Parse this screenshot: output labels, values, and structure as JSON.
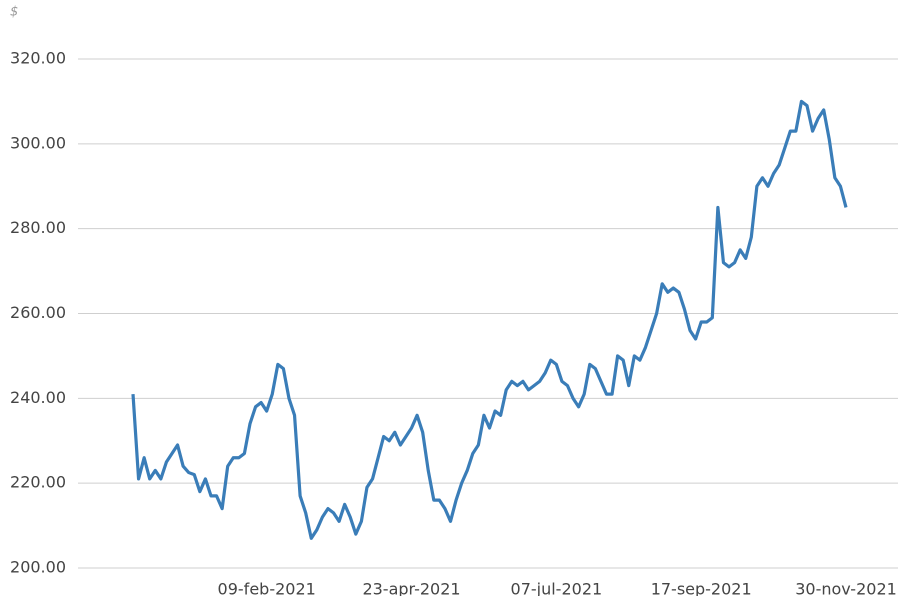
{
  "chart_data": {
    "type": "line",
    "y_label": "$",
    "categories": [
      null,
      null,
      null,
      null,
      null,
      null,
      null,
      null,
      null,
      null,
      null,
      null,
      null,
      null,
      null,
      null,
      null,
      null,
      null,
      null,
      null,
      null,
      null,
      null,
      "09-feb-2021",
      null,
      null,
      null,
      null,
      null,
      null,
      null,
      null,
      null,
      null,
      null,
      null,
      null,
      null,
      null,
      null,
      null,
      null,
      null,
      null,
      null,
      null,
      null,
      null,
      null,
      "23-apr-2021",
      null,
      null,
      null,
      null,
      null,
      null,
      null,
      null,
      null,
      null,
      null,
      null,
      null,
      null,
      null,
      null,
      null,
      null,
      null,
      null,
      null,
      null,
      null,
      null,
      null,
      "07-jul-2021",
      null,
      null,
      null,
      null,
      null,
      null,
      null,
      null,
      null,
      null,
      null,
      null,
      null,
      null,
      null,
      null,
      null,
      null,
      null,
      null,
      null,
      null,
      null,
      null,
      null,
      "17-sep-2021",
      null,
      null,
      null,
      null,
      null,
      null,
      null,
      null,
      null,
      null,
      null,
      null,
      null,
      null,
      null,
      null,
      null,
      null,
      null,
      null,
      null,
      null,
      null,
      null,
      null,
      "30-nov-2021"
    ],
    "series": [
      {
        "name": null,
        "color": "#3a7db8",
        "values": [
          241,
          221,
          226,
          221,
          223,
          221,
          225,
          227,
          229,
          224,
          222.5,
          222,
          218,
          221,
          217,
          217,
          214,
          224,
          226,
          226,
          227,
          234,
          238,
          239,
          237,
          241,
          248,
          247,
          240,
          236,
          217,
          213,
          207,
          209,
          212,
          214,
          213,
          211,
          215,
          212,
          208,
          211,
          219,
          221,
          226,
          231,
          230,
          232,
          229,
          231,
          233,
          236,
          232,
          223,
          216,
          216,
          214,
          211,
          216,
          220,
          223,
          227,
          229,
          236,
          233,
          237,
          236,
          242,
          244,
          243,
          244,
          242,
          243,
          244,
          246,
          249,
          248,
          244,
          243,
          240,
          238,
          241,
          248,
          247,
          244,
          241,
          241,
          250,
          249,
          243,
          250,
          249,
          252,
          256,
          260,
          267,
          265,
          266,
          265,
          261,
          256,
          254,
          258,
          258,
          259,
          285,
          272,
          271,
          272,
          275,
          273,
          278,
          290,
          292,
          290,
          293,
          295,
          299,
          303,
          303,
          310,
          309,
          303,
          306,
          308,
          301,
          292,
          290,
          285
        ]
      }
    ],
    "ylim": [
      200,
      320
    ],
    "yticks": [
      {
        "value": 200,
        "label": "200.00"
      },
      {
        "value": 220,
        "label": "220.00"
      },
      {
        "value": 240,
        "label": "240.00"
      },
      {
        "value": 260,
        "label": "260.00"
      },
      {
        "value": 280,
        "label": "280.00"
      },
      {
        "value": 300,
        "label": "300.00"
      },
      {
        "value": 320,
        "label": "320.00"
      }
    ],
    "grid": true
  }
}
